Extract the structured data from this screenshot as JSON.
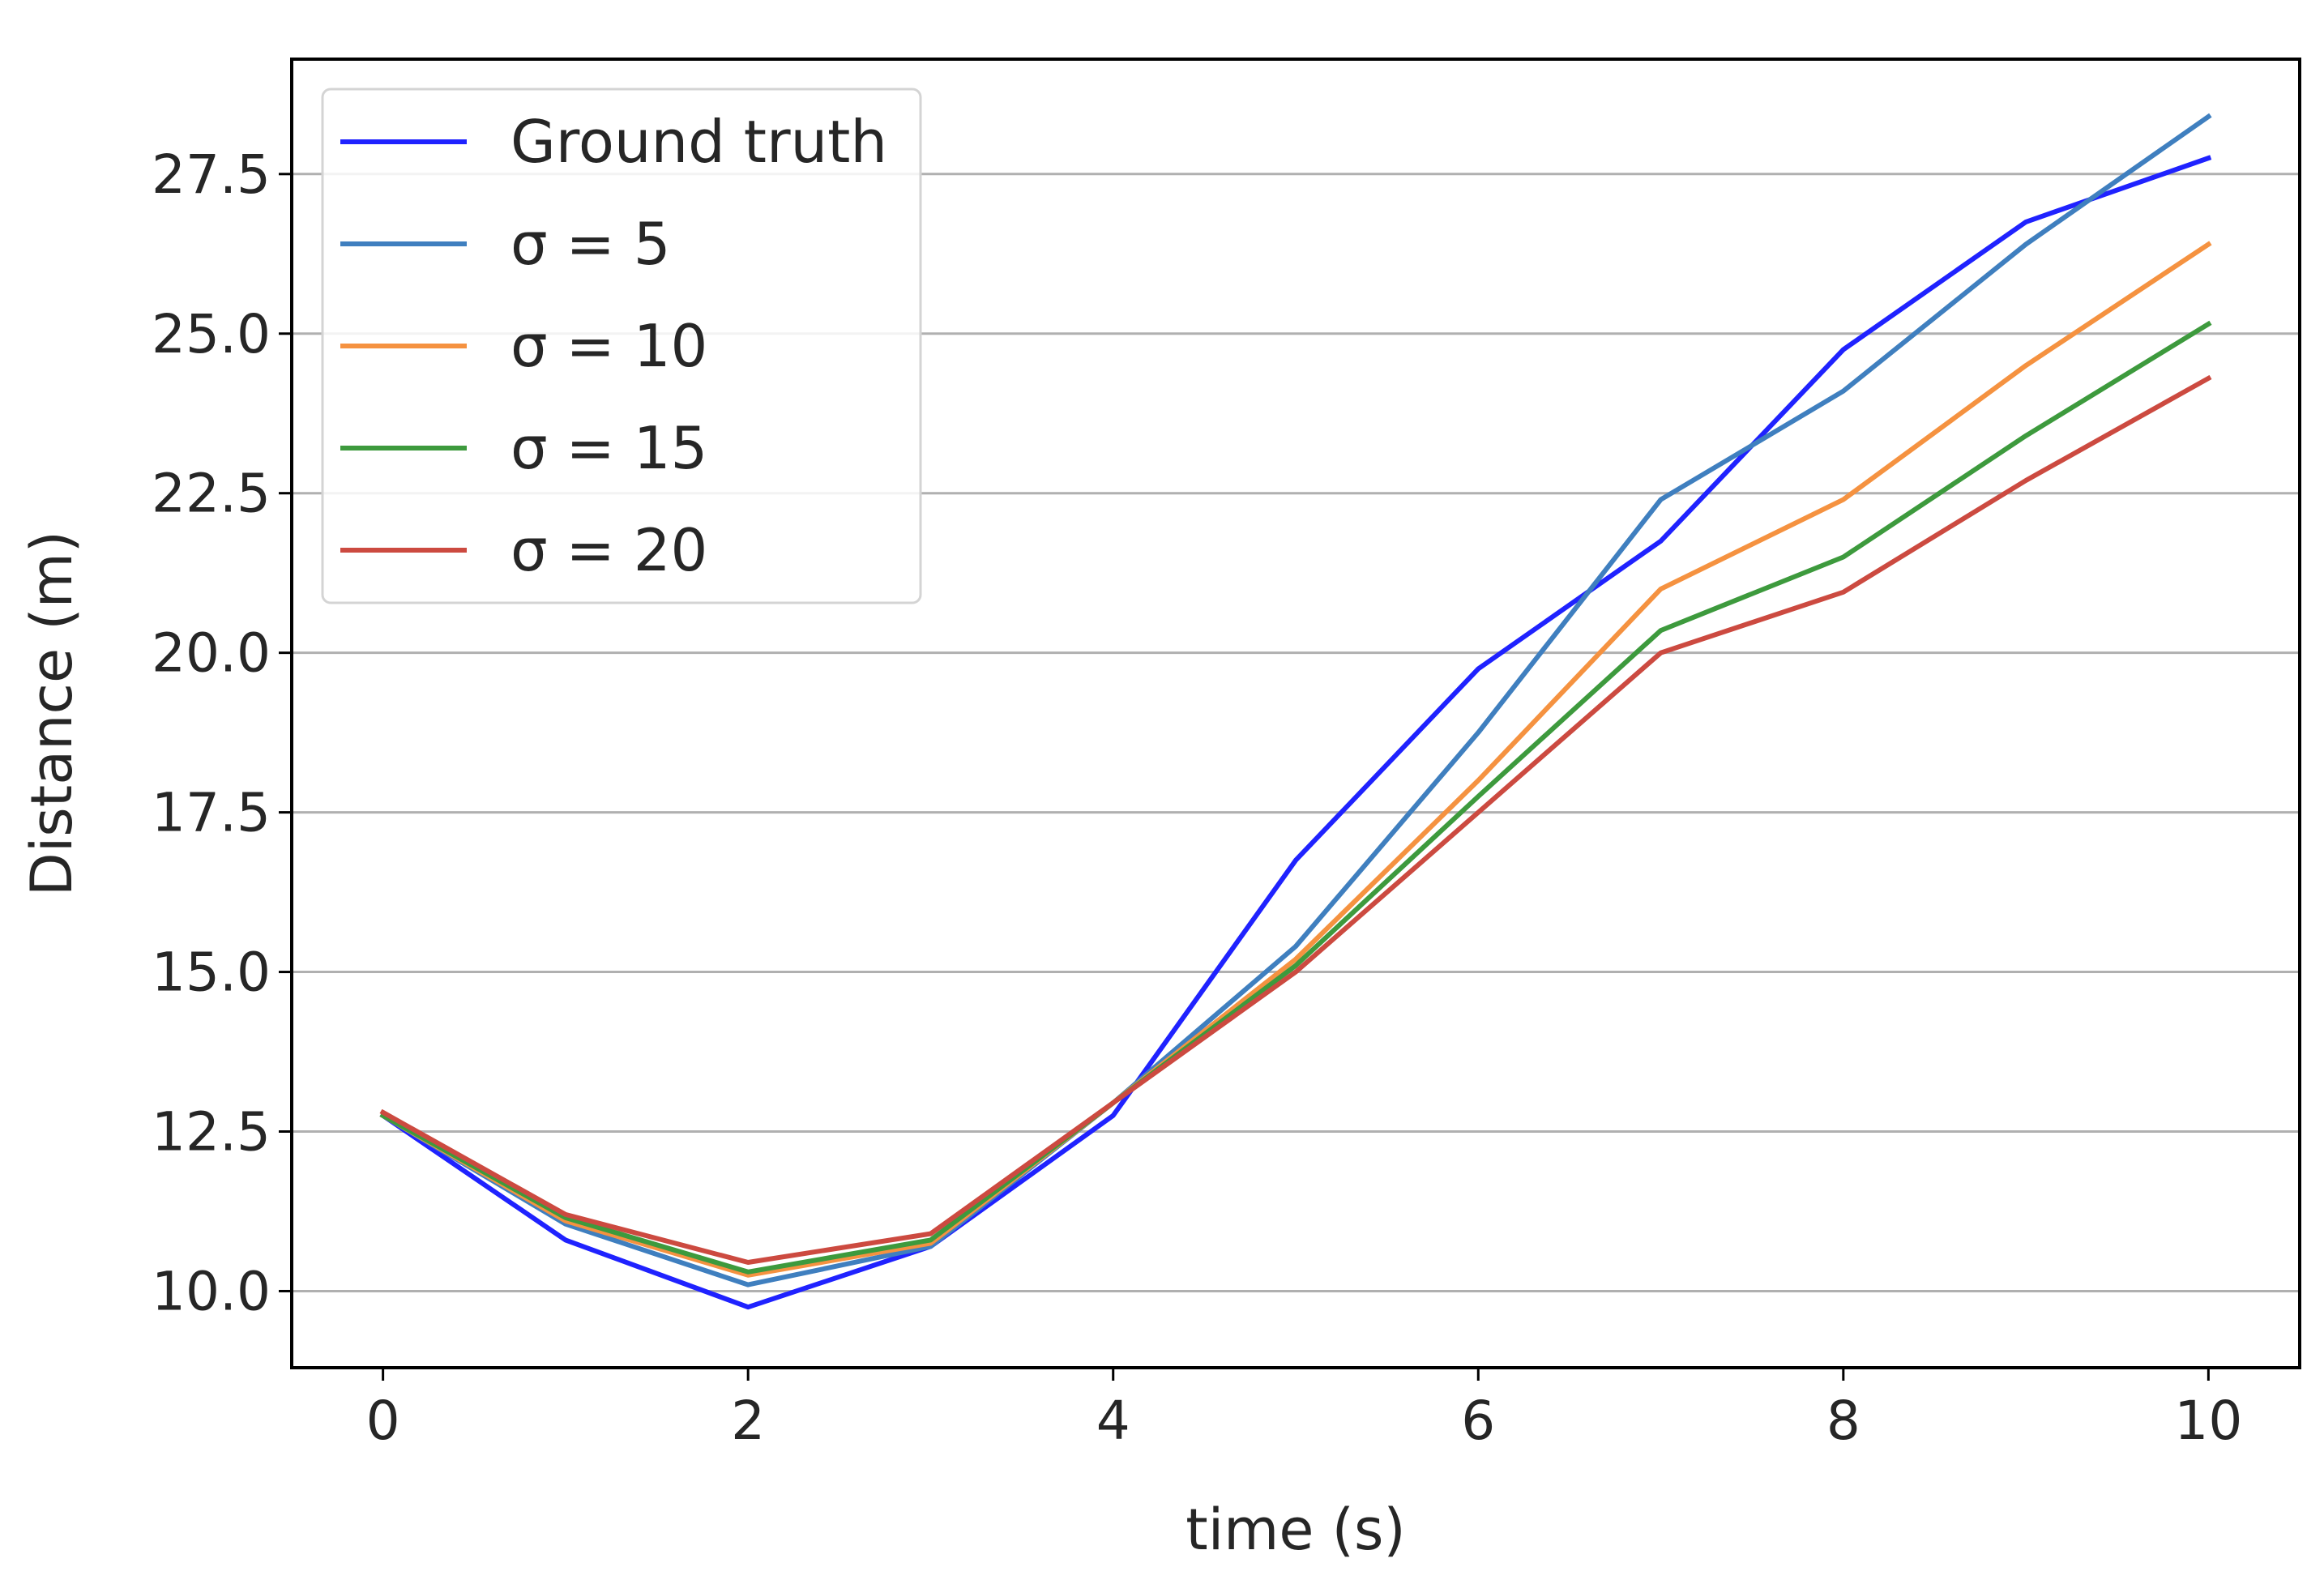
{
  "chart_data": {
    "type": "line",
    "title": "",
    "xlabel": "time (s)",
    "ylabel": "Distance (m)",
    "xlim": [
      -0.5,
      10.5
    ],
    "ylim": [
      8.8,
      29.3
    ],
    "x": [
      0,
      1,
      2,
      3,
      4,
      5,
      6,
      7,
      8,
      9,
      10
    ],
    "xticks": [
      0,
      2,
      4,
      6,
      8,
      10
    ],
    "xtick_labels": [
      "0",
      "2",
      "4",
      "6",
      "8",
      "10"
    ],
    "yticks": [
      10.0,
      12.5,
      15.0,
      17.5,
      20.0,
      22.5,
      25.0,
      27.5
    ],
    "ytick_labels": [
      "10.0",
      "12.5",
      "15.0",
      "17.5",
      "20.0",
      "22.5",
      "25.0",
      "27.5"
    ],
    "grid": "horizontal",
    "legend_position": "upper-left",
    "series": [
      {
        "name": "Ground truth",
        "color": "#1f22ff",
        "values": [
          12.75,
          10.8,
          9.75,
          10.7,
          12.75,
          16.75,
          19.75,
          21.75,
          24.75,
          26.75,
          27.75
        ]
      },
      {
        "name": "σ = 5",
        "color": "#3f7fbf",
        "values": [
          12.75,
          11.05,
          10.1,
          10.7,
          12.95,
          15.4,
          18.75,
          22.4,
          24.1,
          26.4,
          28.4
        ]
      },
      {
        "name": "σ = 10",
        "color": "#f59240",
        "values": [
          12.75,
          11.1,
          10.25,
          10.75,
          12.95,
          15.2,
          18.0,
          21.0,
          22.4,
          24.5,
          26.4
        ]
      },
      {
        "name": "σ = 15",
        "color": "#3d9a3d",
        "values": [
          12.75,
          11.15,
          10.3,
          10.8,
          12.95,
          15.1,
          17.75,
          20.35,
          21.5,
          23.4,
          25.15
        ]
      },
      {
        "name": "σ = 20",
        "color": "#cc4a40",
        "values": [
          12.8,
          11.2,
          10.45,
          10.9,
          12.95,
          15.0,
          17.5,
          20.0,
          20.95,
          22.7,
          24.3
        ]
      }
    ]
  }
}
